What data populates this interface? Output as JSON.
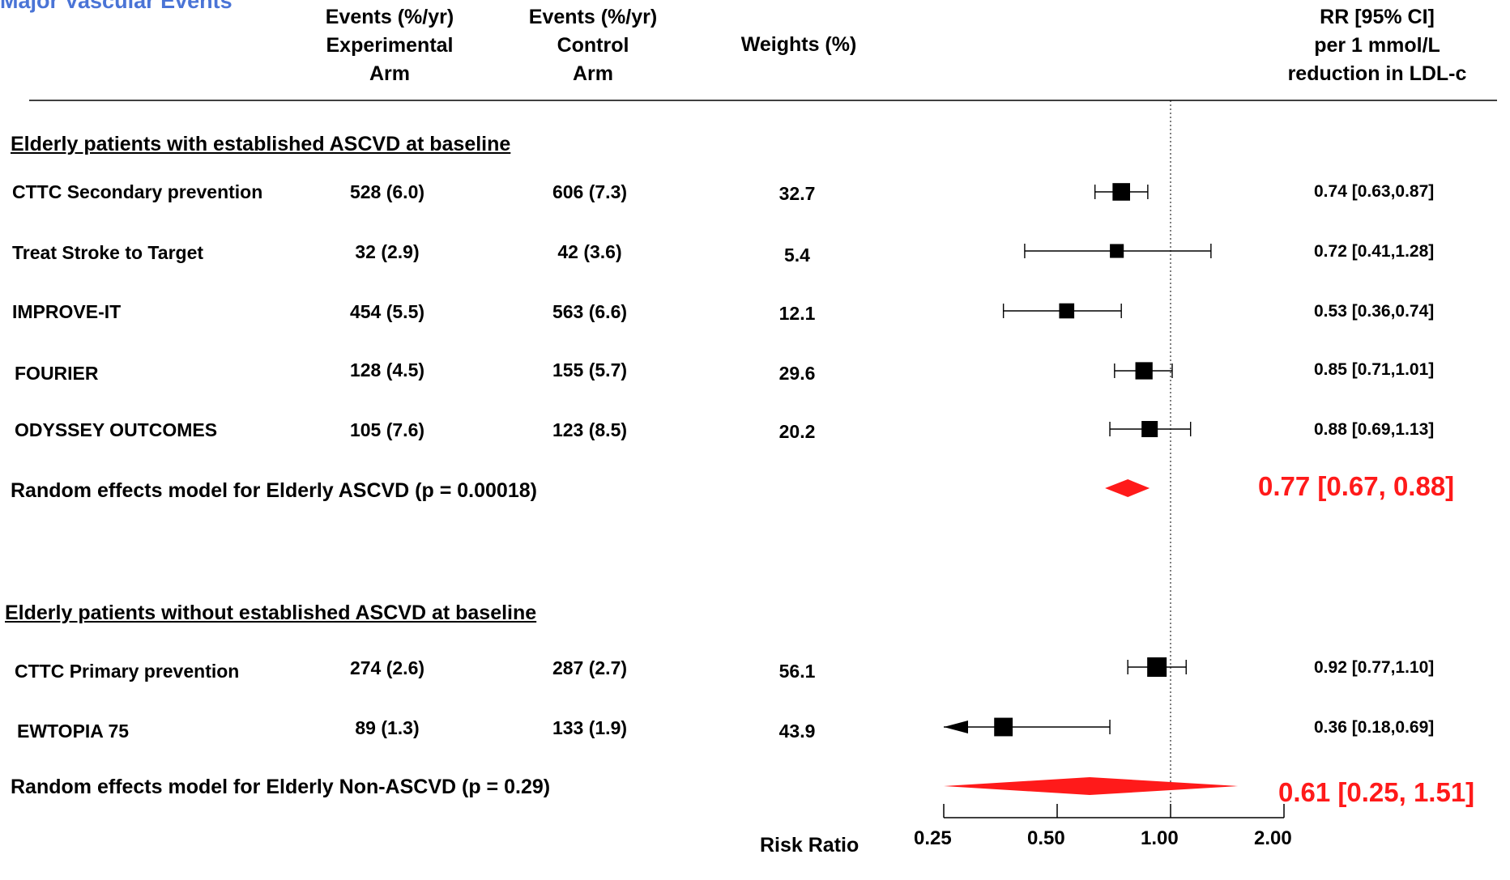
{
  "title": "Major Vascular Events",
  "headers": {
    "experimental": [
      "Events (%/yr)",
      "Experimental",
      "Arm"
    ],
    "control": [
      "Events (%/yr)",
      "Control",
      "Arm"
    ],
    "weights": "Weights (%)",
    "rr": [
      "RR [95% CI]",
      "per 1 mmol/L",
      "reduction in LDL-c"
    ]
  },
  "sections": [
    {
      "label": "Elderly patients with established ASCVD at baseline",
      "studies": [
        {
          "name": "CTTC Secondary prevention",
          "experimental": "528 (6.0)",
          "control": "606 (7.3)",
          "weight": "32.7",
          "ci_text": "0.74 [0.63,0.87]"
        },
        {
          "name": "Treat Stroke to Target",
          "experimental": "32 (2.9)",
          "control": "42 (3.6)",
          "weight": "5.4",
          "ci_text": "0.72 [0.41,1.28]"
        },
        {
          "name": "IMPROVE-IT",
          "experimental": "454 (5.5)",
          "control": "563 (6.6)",
          "weight": "12.1",
          "ci_text": "0.53 [0.36,0.74]"
        },
        {
          "name": "FOURIER",
          "experimental": "128 (4.5)",
          "control": "155 (5.7)",
          "weight": "29.6",
          "ci_text": "0.85 [0.71,1.01]"
        },
        {
          "name": "ODYSSEY OUTCOMES",
          "experimental": "105 (7.6)",
          "control": "123 (8.5)",
          "weight": "20.2",
          "ci_text": "0.88 [0.69,1.13]"
        }
      ],
      "pooled": {
        "label": "Random effects model for Elderly ASCVD (p = 0.00018)",
        "ci_text": "0.77 [0.67, 0.88]"
      }
    },
    {
      "label": "Elderly patients without established ASCVD at baseline",
      "studies": [
        {
          "name": "CTTC Primary prevention",
          "experimental": "274 (2.6)",
          "control": "287 (2.7)",
          "weight": "56.1",
          "ci_text": "0.92 [0.77,1.10]"
        },
        {
          "name": "EWTOPIA 75",
          "experimental": "89 (1.3)",
          "control": "133 (1.9)",
          "weight": "43.9",
          "ci_text": "0.36 [0.18,0.69]"
        }
      ],
      "pooled": {
        "label": "Random effects model for Elderly Non-ASCVD (p = 0.29)",
        "ci_text": "0.61 [0.25, 1.51]"
      }
    }
  ],
  "axis": {
    "label": "Risk Ratio",
    "ticks": [
      "0.25",
      "0.50",
      "1.00",
      "2.00"
    ]
  },
  "chart_data": {
    "type": "forest",
    "xlabel": "Risk Ratio",
    "xscale": "log",
    "xlim": [
      0.25,
      2.0
    ],
    "xticks": [
      0.25,
      0.5,
      1.0,
      2.0
    ],
    "reference_line": 1.0,
    "colors": {
      "pooled": "#ff1a1a",
      "study": "#000000",
      "title": "#4a74d6"
    },
    "series": [
      {
        "estimates": [
          {
            "rr": 0.74,
            "lo": 0.63,
            "hi": 0.87
          },
          {
            "rr": 0.72,
            "lo": 0.41,
            "hi": 1.28
          },
          {
            "rr": 0.53,
            "lo": 0.36,
            "hi": 0.74
          },
          {
            "rr": 0.85,
            "lo": 0.71,
            "hi": 1.01
          },
          {
            "rr": 0.88,
            "lo": 0.69,
            "hi": 1.13
          }
        ],
        "pooled": {
          "rr": 0.77,
          "lo": 0.67,
          "hi": 0.88
        }
      },
      {
        "estimates": [
          {
            "rr": 0.92,
            "lo": 0.77,
            "hi": 1.1
          },
          {
            "rr": 0.36,
            "lo": 0.18,
            "hi": 0.69
          }
        ],
        "pooled": {
          "rr": 0.61,
          "lo": 0.25,
          "hi": 1.51
        }
      }
    ]
  }
}
